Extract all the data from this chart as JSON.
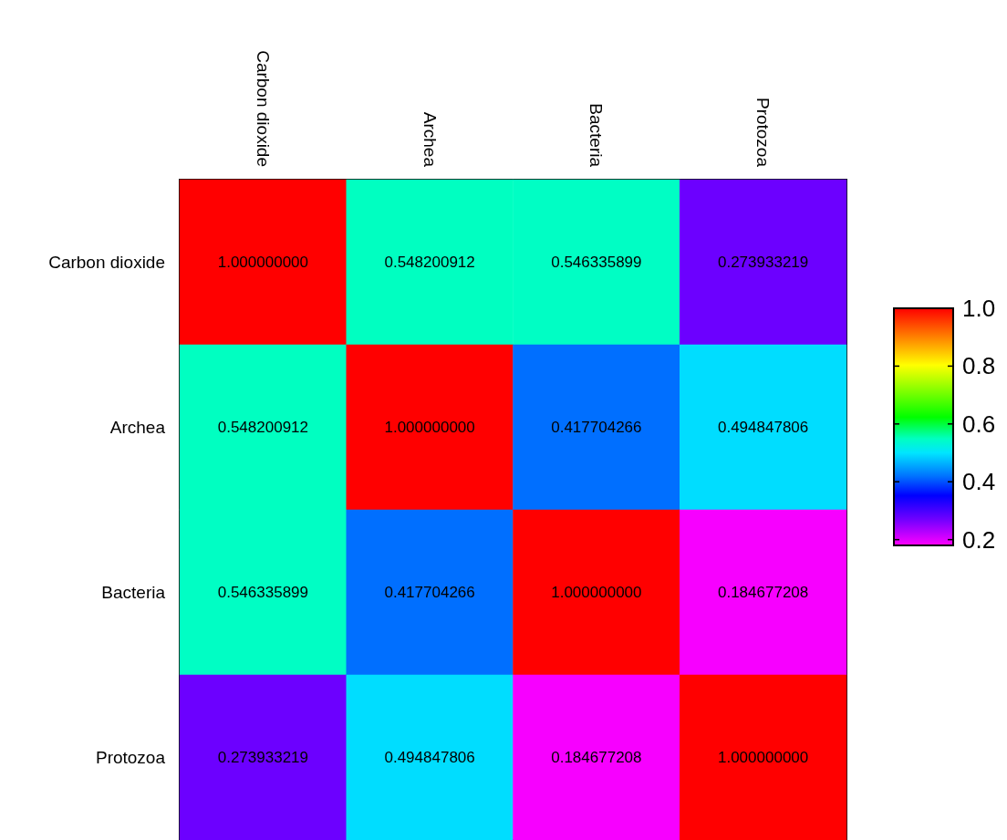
{
  "chart_data": {
    "type": "heatmap",
    "categories": [
      "Carbon dioxide",
      "Archea",
      "Bacteria",
      "Protozoa"
    ],
    "y_categories": [
      "Carbon dioxide",
      "Archea",
      "Bacteria",
      "Protozoa"
    ],
    "cells": [
      [
        1.0,
        0.548200912,
        0.546335899,
        0.273933219
      ],
      [
        0.548200912,
        1.0,
        0.417704266,
        0.494847806
      ],
      [
        0.546335899,
        0.417704266,
        1.0,
        0.184677208
      ],
      [
        0.273933219,
        0.494847806,
        0.184677208,
        1.0
      ]
    ],
    "cell_labels": [
      [
        "1.000000000",
        "0.548200912",
        "0.546335899",
        "0.273933219"
      ],
      [
        "0.548200912",
        "1.000000000",
        "0.417704266",
        "0.494847806"
      ],
      [
        "0.546335899",
        "0.417704266",
        "1.000000000",
        "0.184677208"
      ],
      [
        "0.273933219",
        "0.494847806",
        "0.184677208",
        "1.000000000"
      ]
    ],
    "clim": [
      0.18,
      1.0
    ],
    "cticks": [
      {
        "value": 0.2,
        "label": "0.2"
      },
      {
        "value": 0.4,
        "label": "0.4"
      },
      {
        "value": 0.6,
        "label": "0.6"
      },
      {
        "value": 0.8,
        "label": "0.8"
      },
      {
        "value": 1.0,
        "label": "1.0"
      }
    ]
  }
}
